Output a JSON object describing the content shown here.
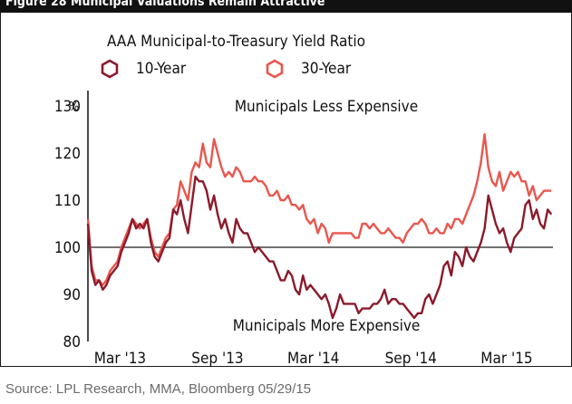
{
  "figure_title": "Figure 28 Municipal Valuations Remain Attractive",
  "source": "Source: LPL Research, MMA, Bloomberg   05/29/15",
  "colors": {
    "ten_year": "#8b1a2b",
    "thirty_year": "#e8574e",
    "baseline": "#444444",
    "axis": "#111111"
  },
  "chart_data": {
    "type": "line",
    "title": "AAA Municipal-to-Treasury Yield Ratio",
    "xlabel": "",
    "ylabel": "",
    "ylim": [
      80,
      130
    ],
    "y_unit": "%",
    "y_ticks": [
      80,
      90,
      100,
      110,
      120,
      130
    ],
    "y_tick_labels": [
      "80",
      "90",
      "100",
      "110",
      "120",
      "130"
    ],
    "x_ticks": [
      "2013-03-01",
      "2013-09-01",
      "2014-03-01",
      "2014-09-01",
      "2015-03-01"
    ],
    "x_tick_labels": [
      "Mar '13",
      "Sep '13",
      "Mar '14",
      "Sep '14",
      "Mar '15"
    ],
    "xlim": [
      "2013-01-01",
      "2015-05-29"
    ],
    "reference_line": 100,
    "annotations": {
      "top": "Municipals Less Expensive",
      "bottom": "Municipals More Expensive"
    },
    "legend": "top-left",
    "grid": false,
    "series": [
      {
        "name": "10-Year",
        "x": [
          "2013-01-01",
          "2013-01-08",
          "2013-01-15",
          "2013-01-22",
          "2013-01-29",
          "2013-02-05",
          "2013-02-12",
          "2013-02-19",
          "2013-02-26",
          "2013-03-05",
          "2013-03-12",
          "2013-03-19",
          "2013-03-26",
          "2013-04-02",
          "2013-04-09",
          "2013-04-16",
          "2013-04-23",
          "2013-04-30",
          "2013-05-07",
          "2013-05-14",
          "2013-05-21",
          "2013-05-28",
          "2013-06-04",
          "2013-06-11",
          "2013-06-18",
          "2013-06-25",
          "2013-07-02",
          "2013-07-09",
          "2013-07-16",
          "2013-07-23",
          "2013-07-30",
          "2013-08-06",
          "2013-08-13",
          "2013-08-20",
          "2013-08-27",
          "2013-09-03",
          "2013-09-10",
          "2013-09-17",
          "2013-09-24",
          "2013-10-01",
          "2013-10-08",
          "2013-10-15",
          "2013-10-22",
          "2013-10-29",
          "2013-11-05",
          "2013-11-12",
          "2013-11-19",
          "2013-11-26",
          "2013-12-03",
          "2013-12-10",
          "2013-12-17",
          "2013-12-24",
          "2013-12-31",
          "2014-01-07",
          "2014-01-14",
          "2014-01-21",
          "2014-01-28",
          "2014-02-04",
          "2014-02-11",
          "2014-02-18",
          "2014-02-25",
          "2014-03-04",
          "2014-03-11",
          "2014-03-18",
          "2014-03-25",
          "2014-04-01",
          "2014-04-08",
          "2014-04-15",
          "2014-04-22",
          "2014-04-29",
          "2014-05-06",
          "2014-05-13",
          "2014-05-20",
          "2014-05-27",
          "2014-06-03",
          "2014-06-10",
          "2014-06-17",
          "2014-06-24",
          "2014-07-01",
          "2014-07-08",
          "2014-07-15",
          "2014-07-22",
          "2014-07-29",
          "2014-08-05",
          "2014-08-12",
          "2014-08-19",
          "2014-08-26",
          "2014-09-02",
          "2014-09-09",
          "2014-09-16",
          "2014-09-23",
          "2014-09-30",
          "2014-10-07",
          "2014-10-14",
          "2014-10-21",
          "2014-10-28",
          "2014-11-04",
          "2014-11-11",
          "2014-11-18",
          "2014-11-25",
          "2014-12-02",
          "2014-12-09",
          "2014-12-16",
          "2014-12-23",
          "2014-12-30",
          "2015-01-06",
          "2015-01-13",
          "2015-01-20",
          "2015-01-27",
          "2015-02-03",
          "2015-02-10",
          "2015-02-17",
          "2015-02-24",
          "2015-03-03",
          "2015-03-10",
          "2015-03-17",
          "2015-03-24",
          "2015-03-31",
          "2015-04-07",
          "2015-04-14",
          "2015-04-21",
          "2015-04-28",
          "2015-05-05",
          "2015-05-12",
          "2015-05-19",
          "2015-05-26"
        ],
        "y": [
          105,
          95,
          92,
          93,
          91,
          92,
          94,
          95,
          96,
          99,
          101,
          103,
          106,
          104,
          105,
          104,
          106,
          101,
          98,
          97,
          99,
          101,
          102,
          108,
          107,
          110,
          106,
          103,
          109,
          115,
          114,
          114,
          112,
          108,
          111,
          107,
          104,
          106,
          103,
          101,
          106,
          104,
          103,
          103,
          101,
          99,
          100,
          99,
          98,
          97,
          97,
          95,
          93,
          93,
          95,
          94,
          91,
          90,
          94,
          91,
          92,
          91,
          90,
          89,
          90,
          88,
          85,
          87,
          90,
          88,
          88,
          88,
          88,
          86,
          87,
          87,
          87,
          88,
          88,
          89,
          91,
          88,
          89,
          89,
          88,
          88,
          87,
          86,
          85,
          86,
          86,
          89,
          90,
          88,
          90,
          92,
          96,
          97,
          94,
          99,
          98,
          96,
          100,
          98,
          97,
          99,
          101,
          104,
          111,
          108,
          105,
          103,
          104,
          101,
          99,
          102,
          103,
          104,
          109,
          110,
          106,
          108,
          105,
          104,
          108,
          107
        ]
      },
      {
        "name": "30-Year",
        "x": [
          "2013-01-01",
          "2013-01-08",
          "2013-01-15",
          "2013-01-22",
          "2013-01-29",
          "2013-02-05",
          "2013-02-12",
          "2013-02-19",
          "2013-02-26",
          "2013-03-05",
          "2013-03-12",
          "2013-03-19",
          "2013-03-26",
          "2013-04-02",
          "2013-04-09",
          "2013-04-16",
          "2013-04-23",
          "2013-04-30",
          "2013-05-07",
          "2013-05-14",
          "2013-05-21",
          "2013-05-28",
          "2013-06-04",
          "2013-06-11",
          "2013-06-18",
          "2013-06-25",
          "2013-07-02",
          "2013-07-09",
          "2013-07-16",
          "2013-07-23",
          "2013-07-30",
          "2013-08-06",
          "2013-08-13",
          "2013-08-20",
          "2013-08-27",
          "2013-09-03",
          "2013-09-10",
          "2013-09-17",
          "2013-09-24",
          "2013-10-01",
          "2013-10-08",
          "2013-10-15",
          "2013-10-22",
          "2013-10-29",
          "2013-11-05",
          "2013-11-12",
          "2013-11-19",
          "2013-11-26",
          "2013-12-03",
          "2013-12-10",
          "2013-12-17",
          "2013-12-24",
          "2013-12-31",
          "2014-01-07",
          "2014-01-14",
          "2014-01-21",
          "2014-01-28",
          "2014-02-04",
          "2014-02-11",
          "2014-02-18",
          "2014-02-25",
          "2014-03-04",
          "2014-03-11",
          "2014-03-18",
          "2014-03-25",
          "2014-04-01",
          "2014-04-08",
          "2014-04-15",
          "2014-04-22",
          "2014-04-29",
          "2014-05-06",
          "2014-05-13",
          "2014-05-20",
          "2014-05-27",
          "2014-06-03",
          "2014-06-10",
          "2014-06-17",
          "2014-06-24",
          "2014-07-01",
          "2014-07-08",
          "2014-07-15",
          "2014-07-22",
          "2014-07-29",
          "2014-08-05",
          "2014-08-12",
          "2014-08-19",
          "2014-08-26",
          "2014-09-02",
          "2014-09-09",
          "2014-09-16",
          "2014-09-23",
          "2014-09-30",
          "2014-10-07",
          "2014-10-14",
          "2014-10-21",
          "2014-10-28",
          "2014-11-04",
          "2014-11-11",
          "2014-11-18",
          "2014-11-25",
          "2014-12-02",
          "2014-12-09",
          "2014-12-16",
          "2014-12-23",
          "2014-12-30",
          "2015-01-06",
          "2015-01-13",
          "2015-01-20",
          "2015-01-27",
          "2015-02-03",
          "2015-02-10",
          "2015-02-17",
          "2015-02-24",
          "2015-03-03",
          "2015-03-10",
          "2015-03-17",
          "2015-03-24",
          "2015-03-31",
          "2015-04-07",
          "2015-04-14",
          "2015-04-21",
          "2015-04-28",
          "2015-05-05",
          "2015-05-12",
          "2015-05-19",
          "2015-05-26"
        ],
        "y": [
          106,
          96,
          93,
          93,
          92,
          93,
          95,
          96,
          97,
          100,
          102,
          104,
          106,
          105,
          104,
          105,
          106,
          102,
          99,
          98,
          100,
          102,
          103,
          108,
          109,
          114,
          112,
          110,
          116,
          118,
          117,
          122,
          118,
          117,
          123,
          120,
          117,
          115,
          116,
          115,
          117,
          116,
          114,
          114,
          114,
          115,
          114,
          114,
          113,
          111,
          111,
          112,
          110,
          110,
          111,
          109,
          109,
          108,
          109,
          106,
          105,
          106,
          103,
          105,
          104,
          101,
          103,
          103,
          103,
          103,
          103,
          103,
          102,
          102,
          105,
          105,
          104,
          105,
          104,
          103,
          103,
          104,
          103,
          102,
          102,
          101,
          103,
          104,
          105,
          105,
          106,
          105,
          103,
          103,
          104,
          103,
          103,
          105,
          104,
          106,
          106,
          105,
          107,
          109,
          111,
          114,
          118,
          124,
          117,
          114,
          113,
          116,
          112,
          114,
          116,
          115,
          116,
          114,
          114,
          111,
          113,
          110,
          111,
          112,
          112,
          112
        ]
      }
    ]
  }
}
